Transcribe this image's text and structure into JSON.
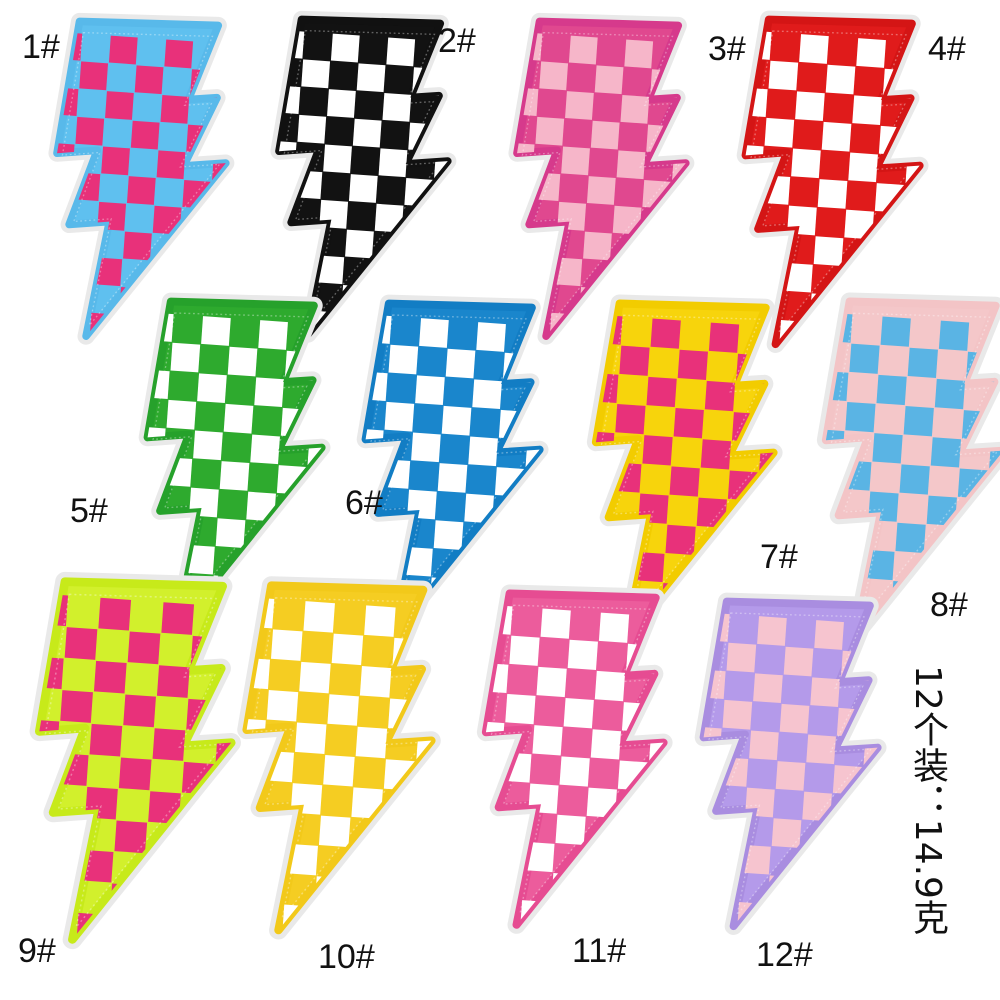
{
  "patches": [
    {
      "label": "1#",
      "outline": "#58b9ea",
      "base": "#5fc0ef",
      "check": "#e8317a",
      "check_light": false
    },
    {
      "label": "2#",
      "outline": "#111111",
      "base": "#121212",
      "check": "#ffffff",
      "check_light": true
    },
    {
      "label": "3#",
      "outline": "#d63a8c",
      "base": "#e0488f",
      "check": "#f6b6c9",
      "check_light": true
    },
    {
      "label": "4#",
      "outline": "#d41515",
      "base": "#e01b1b",
      "check": "#ffffff",
      "check_light": true
    },
    {
      "label": "5#",
      "outline": "#26a12b",
      "base": "#2eaa2e",
      "check": "#ffffff",
      "check_light": true
    },
    {
      "label": "6#",
      "outline": "#127dc4",
      "base": "#1a86cc",
      "check": "#ffffff",
      "check_light": true
    },
    {
      "label": "7#",
      "outline": "#f2cc00",
      "base": "#f7d40c",
      "check": "#e8317a",
      "check_light": false
    },
    {
      "label": "8#",
      "outline": "#f3c4c6",
      "base": "#f4c7c9",
      "check": "#5ab4e4",
      "check_light": false
    },
    {
      "label": "9#",
      "outline": "#c7ea1a",
      "base": "#d2f02c",
      "check": "#e8317a",
      "check_light": false
    },
    {
      "label": "10#",
      "outline": "#f2c91a",
      "base": "#f5cd22",
      "check": "#ffffff",
      "check_light": true
    },
    {
      "label": "11#",
      "outline": "#e64c92",
      "base": "#ec5c9c",
      "check": "#ffffff",
      "check_light": true
    },
    {
      "label": "12#",
      "outline": "#a98de0",
      "base": "#b49aea",
      "check": "#f6c4cf",
      "check_light": true
    }
  ],
  "side_note": "12个装：14.9克"
}
